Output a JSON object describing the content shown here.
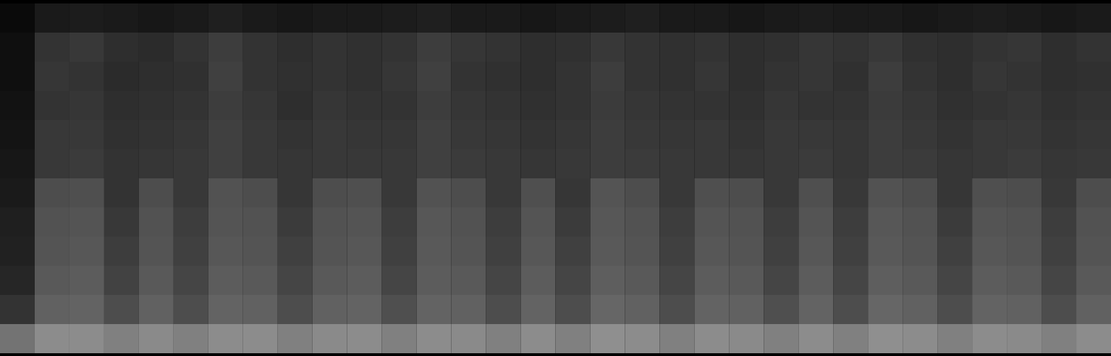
{
  "chart_data": {
    "type": "heatmap",
    "tick_labels": false,
    "value_range": [
      0,
      1
    ],
    "cells": [
      [
        0.04,
        0.1,
        0.11,
        0.1,
        0.09,
        0.1,
        0.12,
        0.1,
        0.09,
        0.1,
        0.1,
        0.11,
        0.12,
        0.1,
        0.1,
        0.09,
        0.1,
        0.11,
        0.12,
        0.1,
        0.1,
        0.09,
        0.1,
        0.11,
        0.1,
        0.1,
        0.09,
        0.1,
        0.11,
        0.1,
        0.09,
        0.1
      ],
      [
        0.06,
        0.2,
        0.22,
        0.18,
        0.17,
        0.2,
        0.24,
        0.2,
        0.18,
        0.2,
        0.19,
        0.2,
        0.24,
        0.21,
        0.2,
        0.18,
        0.19,
        0.22,
        0.2,
        0.19,
        0.2,
        0.18,
        0.19,
        0.21,
        0.2,
        0.22,
        0.19,
        0.18,
        0.2,
        0.21,
        0.18,
        0.2
      ],
      [
        0.06,
        0.21,
        0.2,
        0.17,
        0.18,
        0.19,
        0.25,
        0.2,
        0.19,
        0.2,
        0.19,
        0.21,
        0.25,
        0.2,
        0.19,
        0.18,
        0.2,
        0.24,
        0.2,
        0.19,
        0.21,
        0.18,
        0.2,
        0.21,
        0.19,
        0.24,
        0.2,
        0.18,
        0.21,
        0.2,
        0.18,
        0.19
      ],
      [
        0.07,
        0.2,
        0.21,
        0.18,
        0.19,
        0.2,
        0.24,
        0.21,
        0.18,
        0.21,
        0.2,
        0.2,
        0.24,
        0.21,
        0.2,
        0.19,
        0.2,
        0.23,
        0.21,
        0.2,
        0.2,
        0.19,
        0.21,
        0.2,
        0.2,
        0.23,
        0.21,
        0.19,
        0.2,
        0.21,
        0.19,
        0.2
      ],
      [
        0.08,
        0.22,
        0.22,
        0.19,
        0.2,
        0.21,
        0.25,
        0.22,
        0.2,
        0.22,
        0.21,
        0.21,
        0.25,
        0.22,
        0.21,
        0.2,
        0.21,
        0.24,
        0.22,
        0.21,
        0.22,
        0.2,
        0.22,
        0.22,
        0.21,
        0.24,
        0.22,
        0.2,
        0.22,
        0.22,
        0.2,
        0.21
      ],
      [
        0.09,
        0.22,
        0.23,
        0.2,
        0.21,
        0.22,
        0.25,
        0.22,
        0.21,
        0.22,
        0.22,
        0.22,
        0.25,
        0.23,
        0.22,
        0.21,
        0.22,
        0.24,
        0.23,
        0.22,
        0.22,
        0.21,
        0.22,
        0.23,
        0.21,
        0.24,
        0.23,
        0.21,
        0.22,
        0.23,
        0.21,
        0.22
      ],
      [
        0.1,
        0.3,
        0.31,
        0.2,
        0.3,
        0.22,
        0.32,
        0.3,
        0.21,
        0.3,
        0.31,
        0.22,
        0.32,
        0.3,
        0.22,
        0.31,
        0.21,
        0.33,
        0.3,
        0.22,
        0.31,
        0.3,
        0.22,
        0.31,
        0.22,
        0.32,
        0.3,
        0.21,
        0.31,
        0.3,
        0.22,
        0.3
      ],
      [
        0.12,
        0.32,
        0.33,
        0.22,
        0.32,
        0.24,
        0.33,
        0.32,
        0.23,
        0.32,
        0.33,
        0.24,
        0.34,
        0.32,
        0.24,
        0.33,
        0.23,
        0.34,
        0.32,
        0.24,
        0.33,
        0.32,
        0.24,
        0.33,
        0.24,
        0.34,
        0.32,
        0.23,
        0.33,
        0.32,
        0.24,
        0.32
      ],
      [
        0.13,
        0.33,
        0.34,
        0.24,
        0.33,
        0.25,
        0.34,
        0.33,
        0.25,
        0.33,
        0.34,
        0.25,
        0.35,
        0.33,
        0.25,
        0.34,
        0.25,
        0.35,
        0.33,
        0.25,
        0.34,
        0.33,
        0.25,
        0.34,
        0.25,
        0.35,
        0.33,
        0.25,
        0.34,
        0.33,
        0.25,
        0.33
      ],
      [
        0.15,
        0.35,
        0.36,
        0.26,
        0.35,
        0.27,
        0.36,
        0.35,
        0.27,
        0.35,
        0.36,
        0.27,
        0.36,
        0.35,
        0.27,
        0.36,
        0.27,
        0.37,
        0.35,
        0.27,
        0.36,
        0.35,
        0.27,
        0.36,
        0.27,
        0.37,
        0.35,
        0.27,
        0.36,
        0.35,
        0.27,
        0.35
      ],
      [
        0.2,
        0.38,
        0.39,
        0.3,
        0.38,
        0.3,
        0.39,
        0.38,
        0.3,
        0.38,
        0.39,
        0.31,
        0.39,
        0.38,
        0.3,
        0.39,
        0.3,
        0.4,
        0.38,
        0.3,
        0.39,
        0.38,
        0.31,
        0.39,
        0.3,
        0.4,
        0.38,
        0.3,
        0.39,
        0.38,
        0.3,
        0.38
      ],
      [
        0.45,
        0.55,
        0.55,
        0.5,
        0.54,
        0.5,
        0.55,
        0.55,
        0.5,
        0.54,
        0.55,
        0.5,
        0.55,
        0.54,
        0.5,
        0.55,
        0.5,
        0.56,
        0.55,
        0.5,
        0.55,
        0.54,
        0.5,
        0.55,
        0.5,
        0.56,
        0.55,
        0.5,
        0.55,
        0.54,
        0.5,
        0.55
      ]
    ]
  }
}
